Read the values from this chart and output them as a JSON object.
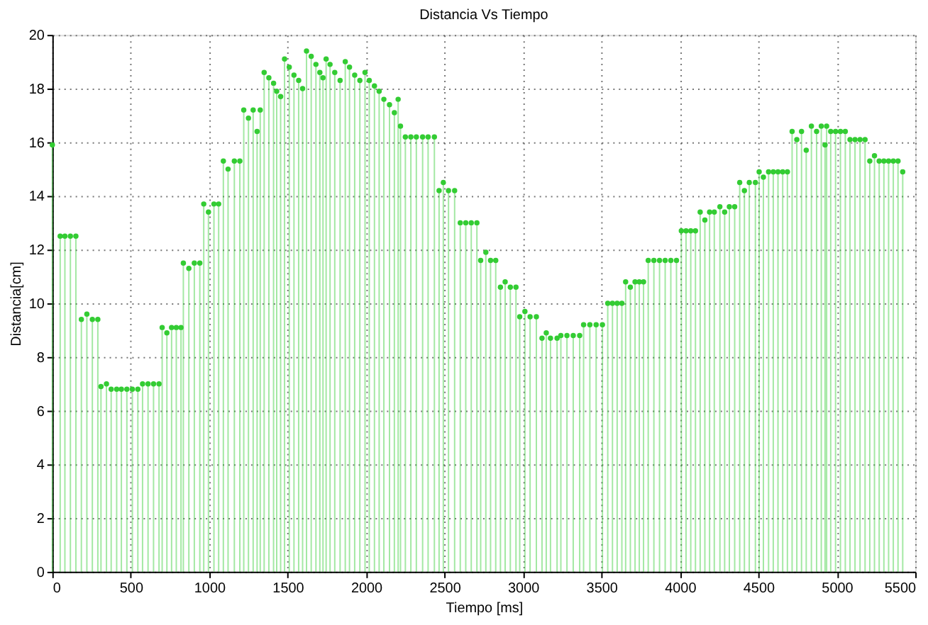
{
  "chart_data": {
    "type": "lollipop",
    "title": "Distancia Vs Tiempo",
    "xlabel": "Tiempo [ms]",
    "ylabel": "Distancia[cm]",
    "xlim": [
      0,
      5500
    ],
    "xticks": [
      0,
      500,
      1000,
      1500,
      2000,
      2500,
      3000,
      3500,
      4000,
      4500,
      5000,
      5500
    ],
    "ylim": [
      0,
      20
    ],
    "yticks": [
      0,
      2,
      4,
      6,
      8,
      10,
      12,
      14,
      16,
      18,
      20
    ],
    "grid": true,
    "marker": "circle",
    "series": [
      {
        "color": "#33cc33",
        "x": [
          0,
          50,
          80,
          115,
          150,
          185,
          220,
          255,
          290,
          310,
          345,
          375,
          410,
          440,
          475,
          510,
          545,
          575,
          610,
          645,
          680,
          700,
          730,
          760,
          790,
          820,
          835,
          870,
          905,
          940,
          965,
          995,
          1030,
          1060,
          1090,
          1120,
          1160,
          1195,
          1220,
          1250,
          1280,
          1305,
          1325,
          1350,
          1380,
          1410,
          1430,
          1455,
          1480,
          1510,
          1540,
          1570,
          1595,
          1620,
          1650,
          1680,
          1705,
          1725,
          1745,
          1770,
          1800,
          1834,
          1867,
          1894,
          1927,
          1960,
          1993,
          2020,
          2053,
          2083,
          2113,
          2149,
          2180,
          2204,
          2219,
          2250,
          2285,
          2320,
          2360,
          2395,
          2435,
          2465,
          2492,
          2525,
          2564,
          2600,
          2635,
          2670,
          2706,
          2730,
          2763,
          2793,
          2826,
          2856,
          2886,
          2919,
          2955,
          2979,
          3012,
          3045,
          3085,
          3121,
          3148,
          3175,
          3217,
          3241,
          3280,
          3320,
          3361,
          3386,
          3426,
          3466,
          3506,
          3540,
          3570,
          3600,
          3630,
          3654,
          3684,
          3714,
          3741,
          3768,
          3798,
          3834,
          3870,
          3906,
          3942,
          3978,
          4009,
          4039,
          4069,
          4099,
          4129,
          4159,
          4189,
          4219,
          4255,
          4285,
          4315,
          4349,
          4381,
          4411,
          4442,
          4481,
          4505,
          4532,
          4565,
          4595,
          4625,
          4655,
          4685,
          4715,
          4745,
          4775,
          4805,
          4838,
          4871,
          4901,
          4925,
          4935,
          4961,
          4992,
          5023,
          5054,
          5084,
          5116,
          5148,
          5180,
          5210,
          5240,
          5270,
          5300,
          5330,
          5360,
          5390,
          5420
        ],
        "values": [
          15.9,
          12.5,
          12.5,
          12.5,
          12.5,
          9.4,
          9.6,
          9.4,
          9.4,
          6.9,
          7.0,
          6.8,
          6.8,
          6.8,
          6.8,
          6.8,
          6.8,
          7.0,
          7.0,
          7.0,
          7.0,
          9.1,
          8.9,
          9.1,
          9.1,
          9.1,
          11.5,
          11.3,
          11.5,
          11.5,
          13.7,
          13.4,
          13.7,
          13.7,
          15.3,
          15.0,
          15.3,
          15.3,
          17.2,
          16.9,
          17.2,
          16.4,
          17.2,
          18.6,
          18.4,
          18.2,
          17.9,
          17.7,
          19.1,
          18.8,
          18.5,
          18.3,
          18.0,
          19.4,
          19.2,
          18.9,
          18.6,
          18.4,
          19.1,
          18.9,
          18.6,
          18.3,
          19.0,
          18.8,
          18.5,
          18.3,
          18.6,
          18.3,
          18.1,
          17.9,
          17.6,
          17.4,
          17.1,
          17.6,
          16.6,
          16.2,
          16.2,
          16.2,
          16.2,
          16.2,
          16.2,
          14.2,
          14.5,
          14.2,
          14.2,
          13.0,
          13.0,
          13.0,
          13.0,
          11.6,
          11.9,
          11.6,
          11.6,
          10.6,
          10.8,
          10.6,
          10.6,
          9.5,
          9.7,
          9.5,
          9.5,
          8.7,
          8.9,
          8.7,
          8.7,
          8.8,
          8.8,
          8.8,
          8.8,
          9.2,
          9.2,
          9.2,
          9.2,
          10.0,
          10.0,
          10.0,
          10.0,
          10.8,
          10.6,
          10.8,
          10.8,
          10.8,
          11.6,
          11.6,
          11.6,
          11.6,
          11.6,
          11.6,
          12.7,
          12.7,
          12.7,
          12.7,
          13.4,
          13.1,
          13.4,
          13.4,
          13.6,
          13.4,
          13.6,
          13.6,
          14.5,
          14.2,
          14.5,
          14.5,
          14.9,
          14.7,
          14.9,
          14.9,
          14.9,
          14.9,
          14.9,
          16.4,
          16.1,
          16.4,
          15.7,
          16.6,
          16.4,
          16.6,
          15.9,
          16.6,
          16.4,
          16.4,
          16.4,
          16.4,
          16.1,
          16.1,
          16.1,
          16.1,
          15.3,
          15.5,
          15.3,
          15.3,
          15.3,
          15.3,
          15.3,
          14.9
        ]
      }
    ]
  }
}
